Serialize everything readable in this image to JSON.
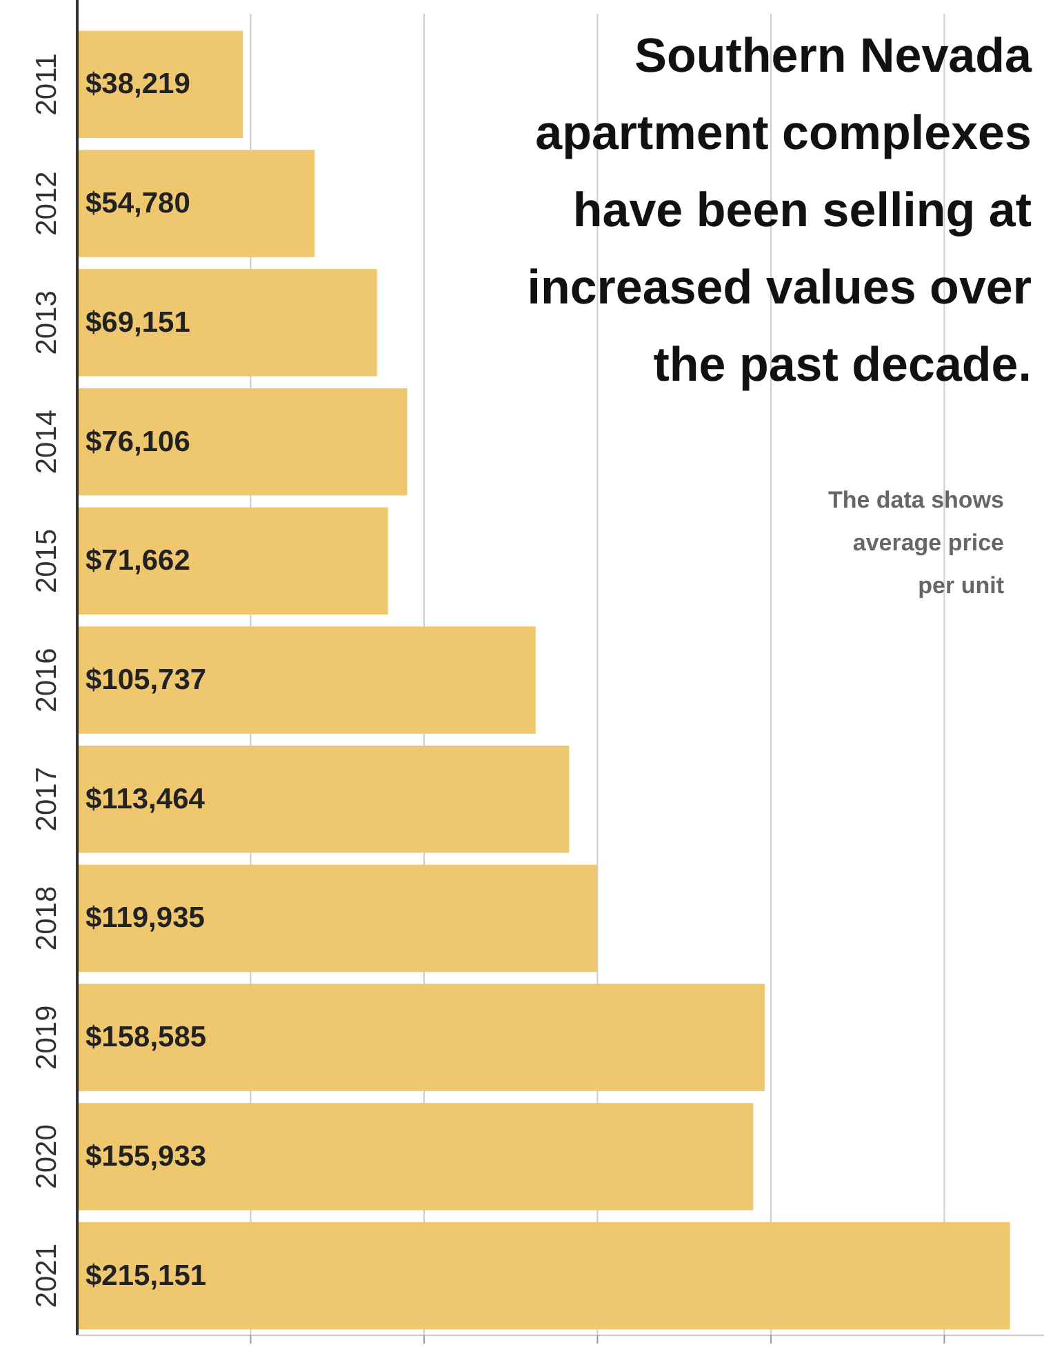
{
  "chart_data": {
    "type": "bar",
    "orientation": "horizontal",
    "title": "Southern Nevada apartment complexes have been selling at increased values over the past decade.",
    "annotations": [
      "The data shows average price per unit"
    ],
    "categories": [
      "2011",
      "2012",
      "2013",
      "2014",
      "2015",
      "2016",
      "2017",
      "2018",
      "2019",
      "2020",
      "2021"
    ],
    "values": [
      38219,
      54780,
      69151,
      76106,
      71662,
      105737,
      113464,
      119935,
      158585,
      155933,
      215151
    ],
    "value_labels": [
      "$38,219",
      "$54,780",
      "$69,151",
      "$76,106",
      "$71,662",
      "$105,737",
      "$113,464",
      "$119,935",
      "$158,585",
      "$155,933",
      "$215,151"
    ],
    "color": "#eec76f",
    "xlim": [
      0,
      223000
    ],
    "xticks": [
      {
        "value": 40000,
        "label": null
      },
      {
        "value": 80000,
        "label": null
      },
      {
        "value": 120000,
        "label": null
      },
      {
        "value": 160000,
        "label": null
      },
      {
        "value": 200000,
        "label": null
      }
    ],
    "grid": "x",
    "tick_labels": "y"
  }
}
